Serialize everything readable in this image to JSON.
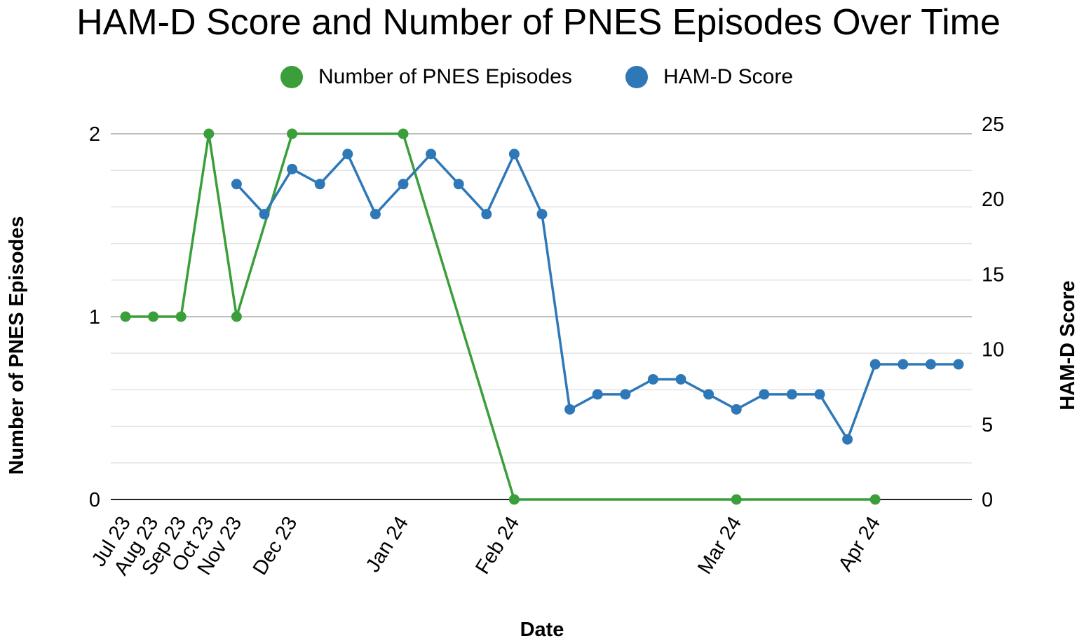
{
  "chart_data": {
    "type": "line",
    "title": "HAM-D Score and Number of PNES Episodes Over Time",
    "xlabel": "Date",
    "ylabel_left": "Number of PNES Episodes",
    "ylabel_right": "HAM-D Score",
    "x_tick_labels": [
      "Jul 23",
      "Aug 23",
      "Sep 23",
      "Oct 23",
      "Nov 23",
      "Dec 23",
      "Jan 24",
      "Feb 24",
      "Mar 24",
      "Apr 24"
    ],
    "x_tick_index": [
      0,
      1,
      2,
      3,
      4,
      6,
      10,
      14,
      22,
      27
    ],
    "left_axis": {
      "range": [
        0,
        2
      ],
      "ticks": [
        0,
        1,
        2
      ]
    },
    "right_axis": {
      "range": [
        0,
        25
      ],
      "ticks": [
        0,
        5,
        10,
        15,
        20,
        25
      ]
    },
    "grid": true,
    "legend_position": "top",
    "series": [
      {
        "name": "Number of PNES Episodes",
        "axis": "left",
        "color": "#3a9e3a",
        "points": [
          {
            "i": 0,
            "y": 1
          },
          {
            "i": 1,
            "y": 1
          },
          {
            "i": 2,
            "y": 1
          },
          {
            "i": 3,
            "y": 2
          },
          {
            "i": 4,
            "y": 1
          },
          {
            "i": 6,
            "y": 2
          },
          {
            "i": 10,
            "y": 2
          },
          {
            "i": 14,
            "y": 0
          },
          {
            "i": 22,
            "y": 0
          },
          {
            "i": 27,
            "y": 0
          }
        ]
      },
      {
        "name": "HAM-D Score",
        "axis": "right",
        "color": "#2e78b7",
        "points": [
          {
            "i": 4,
            "y": 21
          },
          {
            "i": 5,
            "y": 19
          },
          {
            "i": 6,
            "y": 22
          },
          {
            "i": 7,
            "y": 21
          },
          {
            "i": 8,
            "y": 23
          },
          {
            "i": 9,
            "y": 19
          },
          {
            "i": 10,
            "y": 21
          },
          {
            "i": 11,
            "y": 23
          },
          {
            "i": 12,
            "y": 21
          },
          {
            "i": 13,
            "y": 19
          },
          {
            "i": 14,
            "y": 23
          },
          {
            "i": 15,
            "y": 19
          },
          {
            "i": 16,
            "y": 6
          },
          {
            "i": 17,
            "y": 7
          },
          {
            "i": 18,
            "y": 7
          },
          {
            "i": 19,
            "y": 8
          },
          {
            "i": 20,
            "y": 8
          },
          {
            "i": 21,
            "y": 7
          },
          {
            "i": 22,
            "y": 6
          },
          {
            "i": 23,
            "y": 7
          },
          {
            "i": 24,
            "y": 7
          },
          {
            "i": 25,
            "y": 7
          },
          {
            "i": 26,
            "y": 4
          },
          {
            "i": 27,
            "y": 9
          },
          {
            "i": 28,
            "y": 9
          },
          {
            "i": 29,
            "y": 9
          },
          {
            "i": 30,
            "y": 9
          }
        ]
      }
    ]
  }
}
